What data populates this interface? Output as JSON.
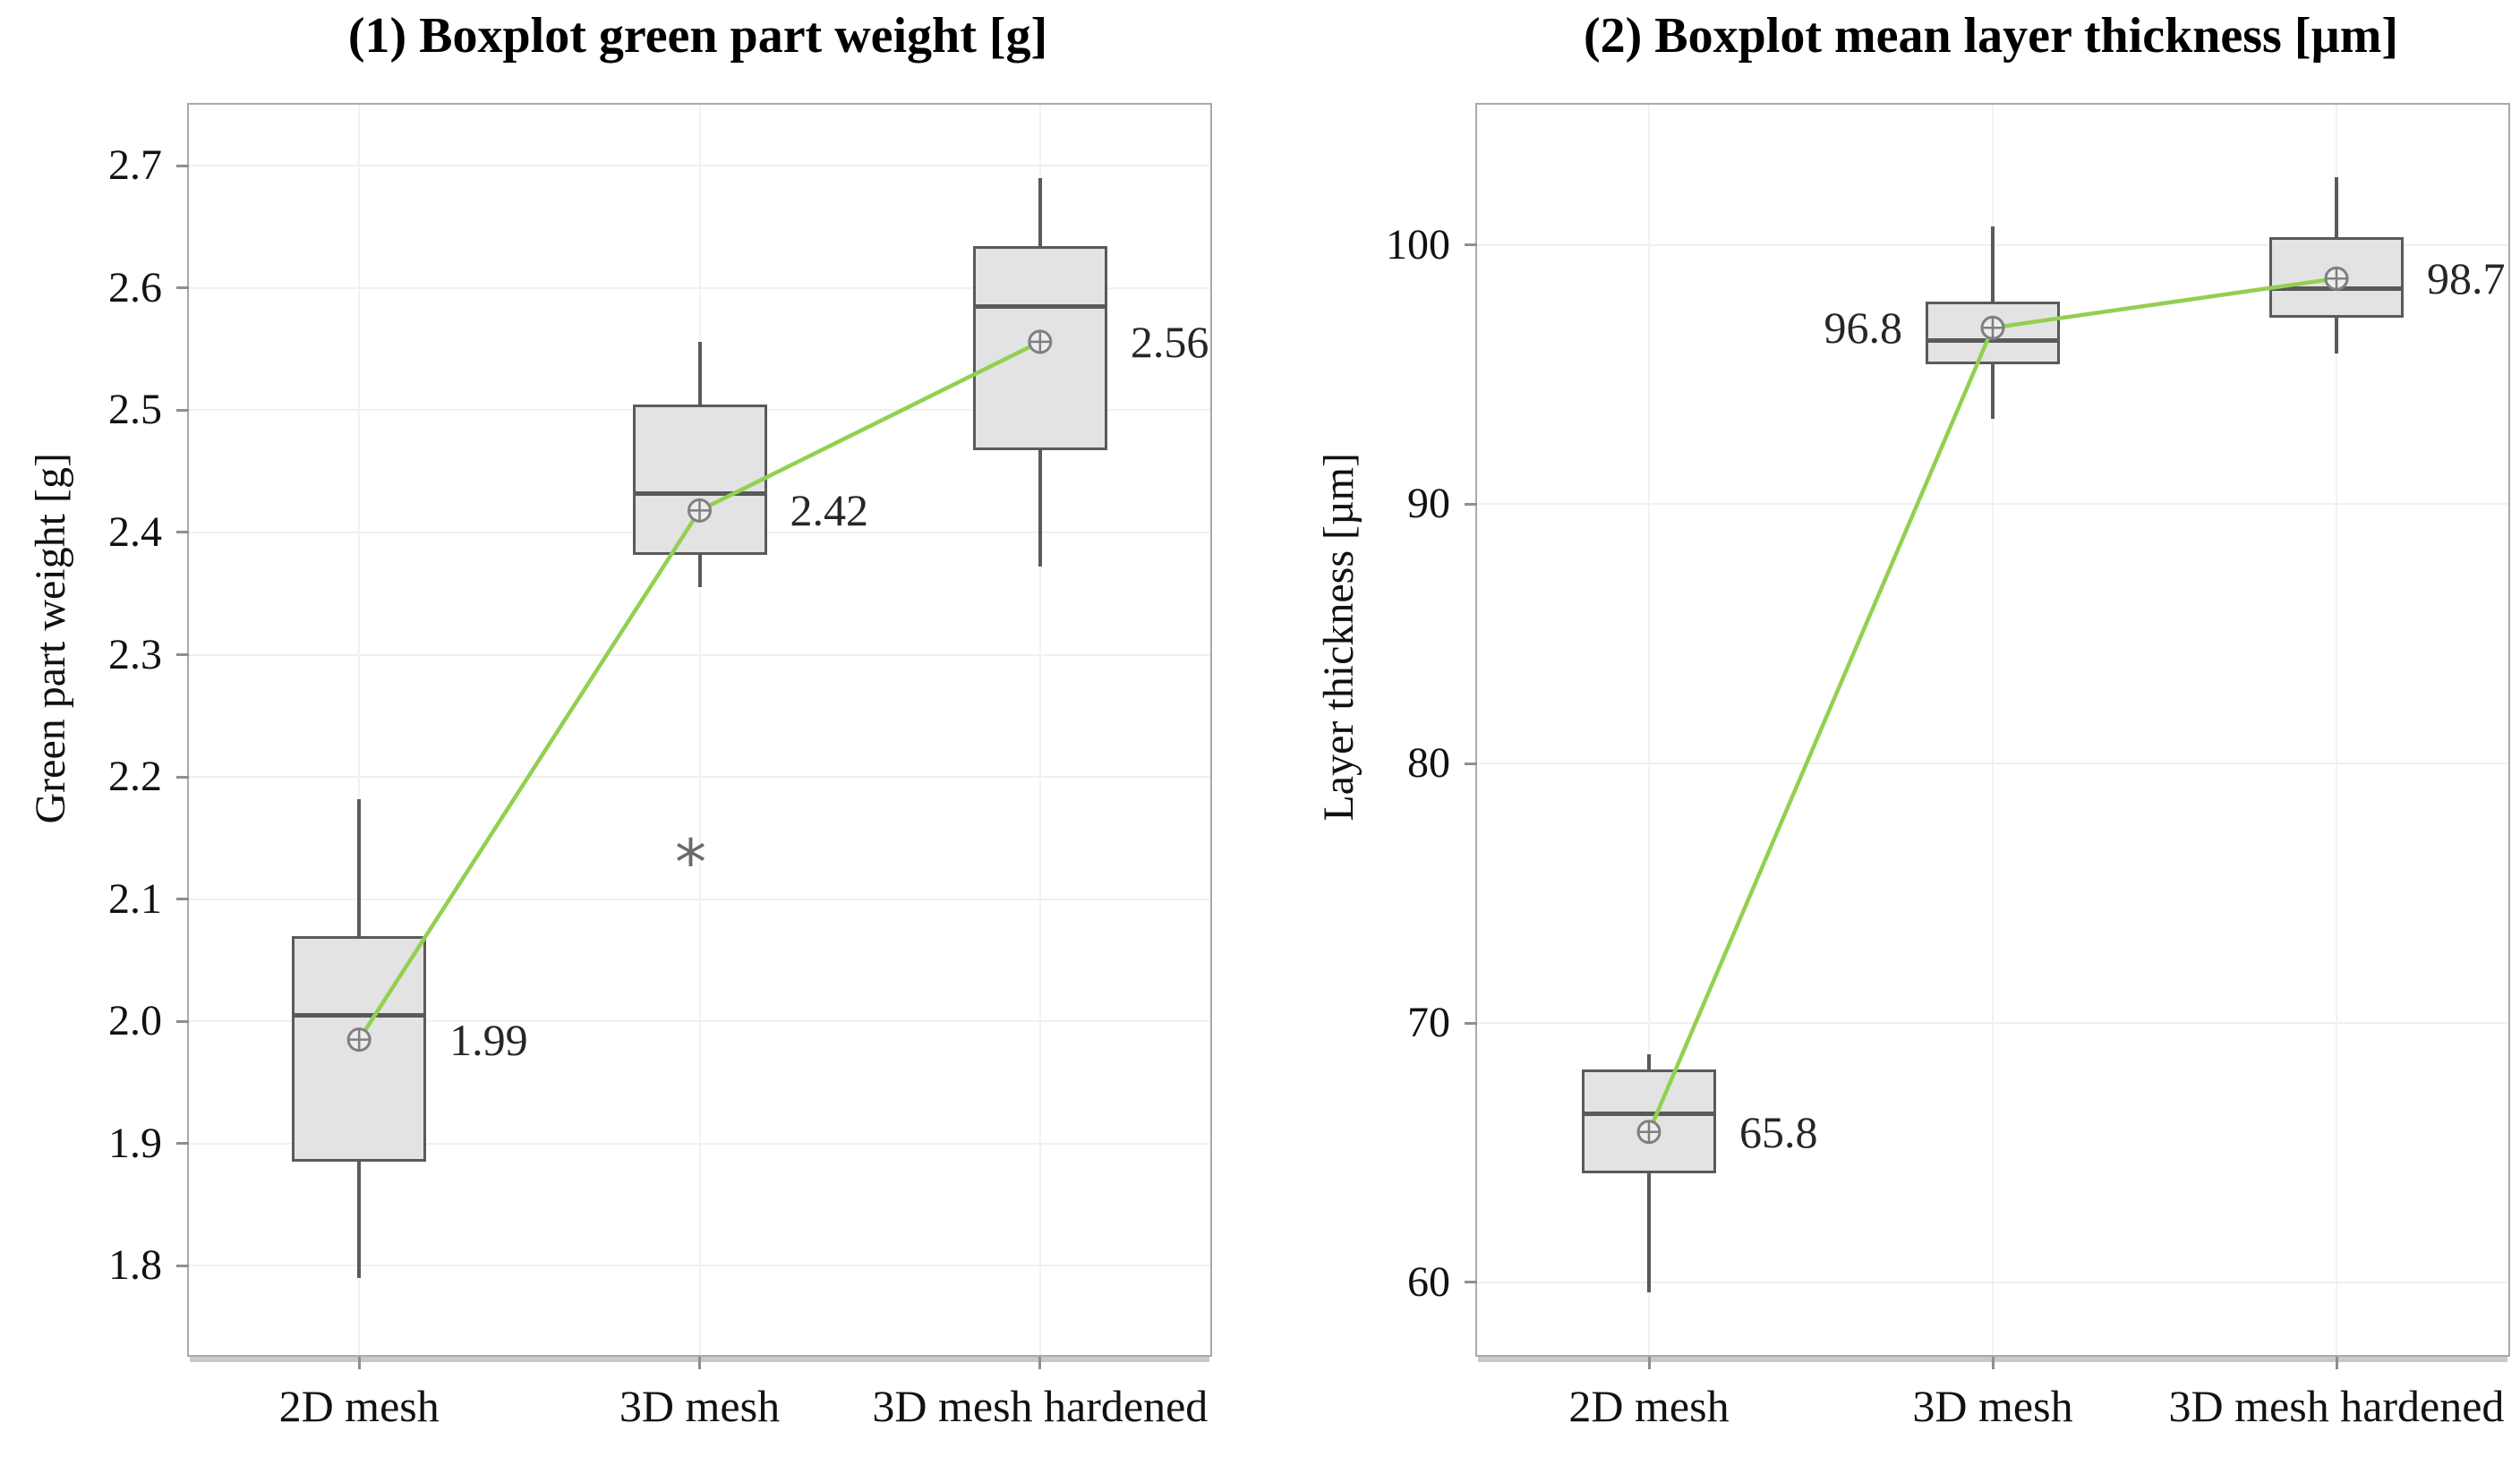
{
  "figure": {
    "background": "#ffffff",
    "box_fill": "#e3e3e3",
    "box_border": "#5a5a5a",
    "mean_line_color": "#92d050",
    "mean_marker_stroke": "#7f7f7f",
    "mean_marker_fill": "#ececec",
    "gridline_color": "#f0f0f0",
    "outlier_glyph": "*"
  },
  "chart_data": [
    {
      "type": "boxplot",
      "title": "(1) Boxplot green part weight [g]",
      "ylabel": "Green part weight [g]",
      "xlabel": "",
      "categories": [
        "2D mesh",
        "3D mesh",
        "3D mesh hardened"
      ],
      "ylim": [
        1.727,
        2.75
      ],
      "yticks": [
        "1.8",
        "1.9",
        "2.0",
        "2.1",
        "2.2",
        "2.3",
        "2.4",
        "2.5",
        "2.6",
        "2.7"
      ],
      "grid": true,
      "legend": "none",
      "mean_line": true,
      "boxes": [
        {
          "category": "2D mesh",
          "whisker_low": 1.79,
          "q1": 1.885,
          "median": 2.005,
          "q3": 2.07,
          "whisker_high": 2.182,
          "mean": 1.985,
          "mean_label": "1.99",
          "label_side": "right",
          "outliers": []
        },
        {
          "category": "3D mesh",
          "whisker_low": 2.355,
          "q1": 2.382,
          "median": 2.432,
          "q3": 2.505,
          "whisker_high": 2.556,
          "mean": 2.418,
          "mean_label": "2.42",
          "label_side": "right",
          "outliers": [
            2.14
          ]
        },
        {
          "category": "3D mesh hardened",
          "whisker_low": 2.372,
          "q1": 2.467,
          "median": 2.585,
          "q3": 2.634,
          "whisker_high": 2.69,
          "mean": 2.556,
          "mean_label": "2.56",
          "label_side": "right",
          "outliers": []
        }
      ]
    },
    {
      "type": "boxplot",
      "title": "(2) Boxplot mean layer thickness [µm]",
      "ylabel": "Layer thickness [µm]",
      "xlabel": "",
      "categories": [
        "2D mesh",
        "3D mesh",
        "3D mesh hardened"
      ],
      "ylim": [
        57.2,
        105.4
      ],
      "yticks": [
        "60",
        "70",
        "80",
        "90",
        "100"
      ],
      "grid": true,
      "legend": "none",
      "mean_line": true,
      "boxes": [
        {
          "category": "2D mesh",
          "whisker_low": 59.6,
          "q1": 64.2,
          "median": 66.5,
          "q3": 68.2,
          "whisker_high": 68.8,
          "mean": 65.8,
          "mean_label": "65.8",
          "label_side": "right",
          "outliers": []
        },
        {
          "category": "3D mesh",
          "whisker_low": 93.3,
          "q1": 95.4,
          "median": 96.3,
          "q3": 97.8,
          "whisker_high": 100.7,
          "mean": 96.8,
          "mean_label": "96.8",
          "label_side": "left",
          "outliers": []
        },
        {
          "category": "3D mesh hardened",
          "whisker_low": 95.8,
          "q1": 97.2,
          "median": 98.3,
          "q3": 100.3,
          "whisker_high": 102.6,
          "mean": 98.7,
          "mean_label": "98.7",
          "label_side": "right",
          "outliers": []
        }
      ]
    }
  ]
}
